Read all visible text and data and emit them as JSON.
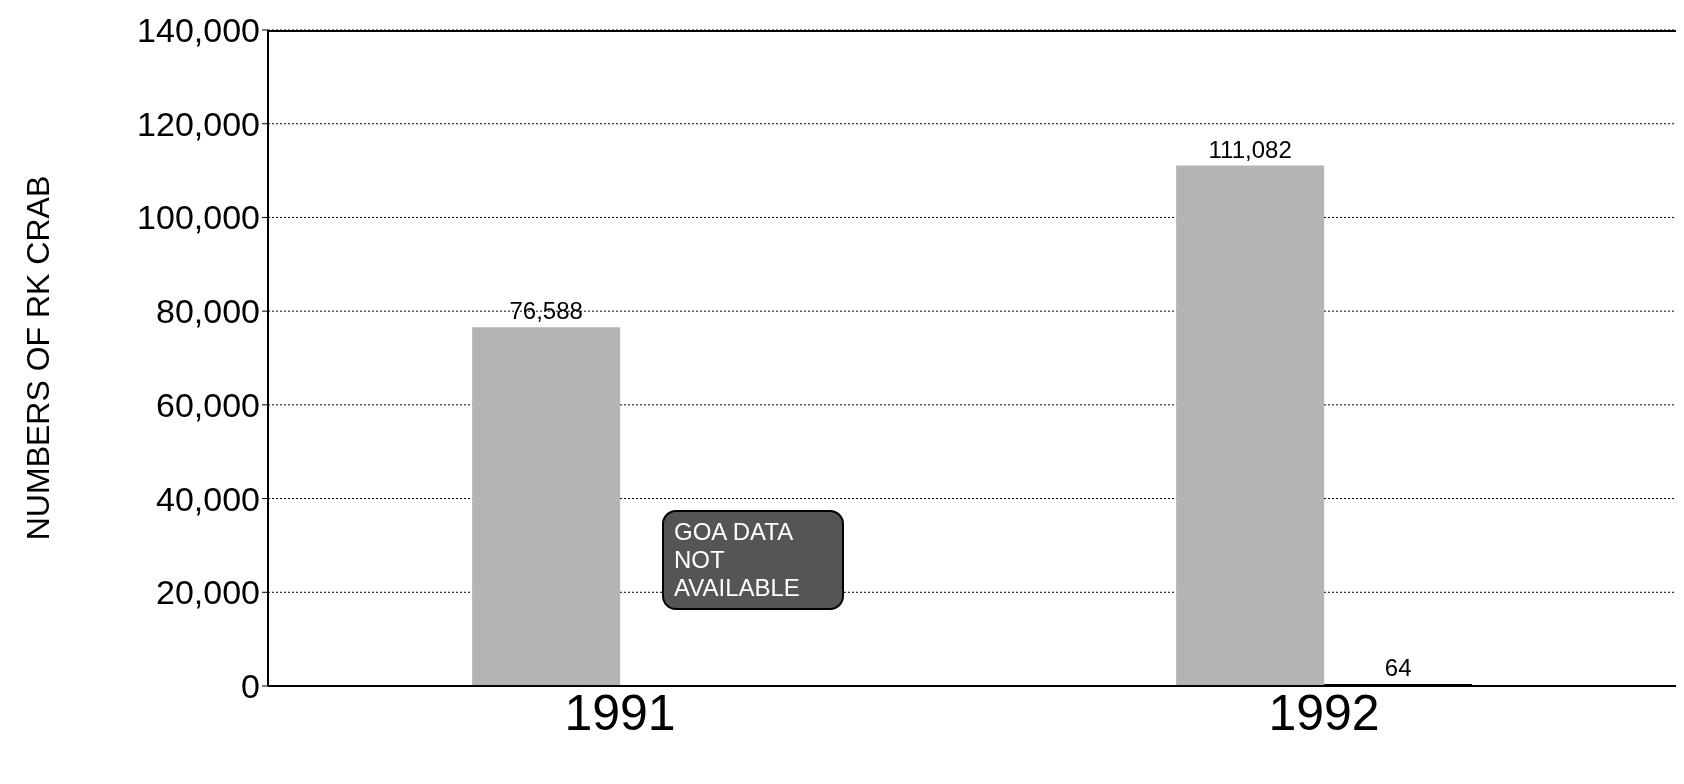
{
  "chart_data": {
    "type": "bar",
    "ylabel": "NUMBERS OF RK CRAB",
    "categories": [
      "1991",
      "1992"
    ],
    "series": [
      {
        "color": "#b4b4b4",
        "values": [
          76588,
          111082
        ],
        "value_labels": [
          "76,588",
          "111,082"
        ]
      },
      {
        "color": "#000000",
        "values": [
          null,
          64
        ],
        "value_labels": [
          null,
          "64"
        ]
      }
    ],
    "ylim": [
      0,
      140000
    ],
    "yticks": [
      0,
      {
        "value": 20000,
        "label": "20,000"
      },
      {
        "value": 40000,
        "label": "40,000"
      },
      {
        "value": 60000,
        "label": "60,000"
      },
      {
        "value": 80000,
        "label": "80,000"
      },
      {
        "value": 100000,
        "label": "100,000"
      },
      {
        "value": 120000,
        "label": "120,000"
      },
      {
        "value": 140000,
        "label": "140,000"
      }
    ],
    "grid": "y",
    "annotations": [
      "GOA DATA NOT AVAILABLE"
    ]
  }
}
